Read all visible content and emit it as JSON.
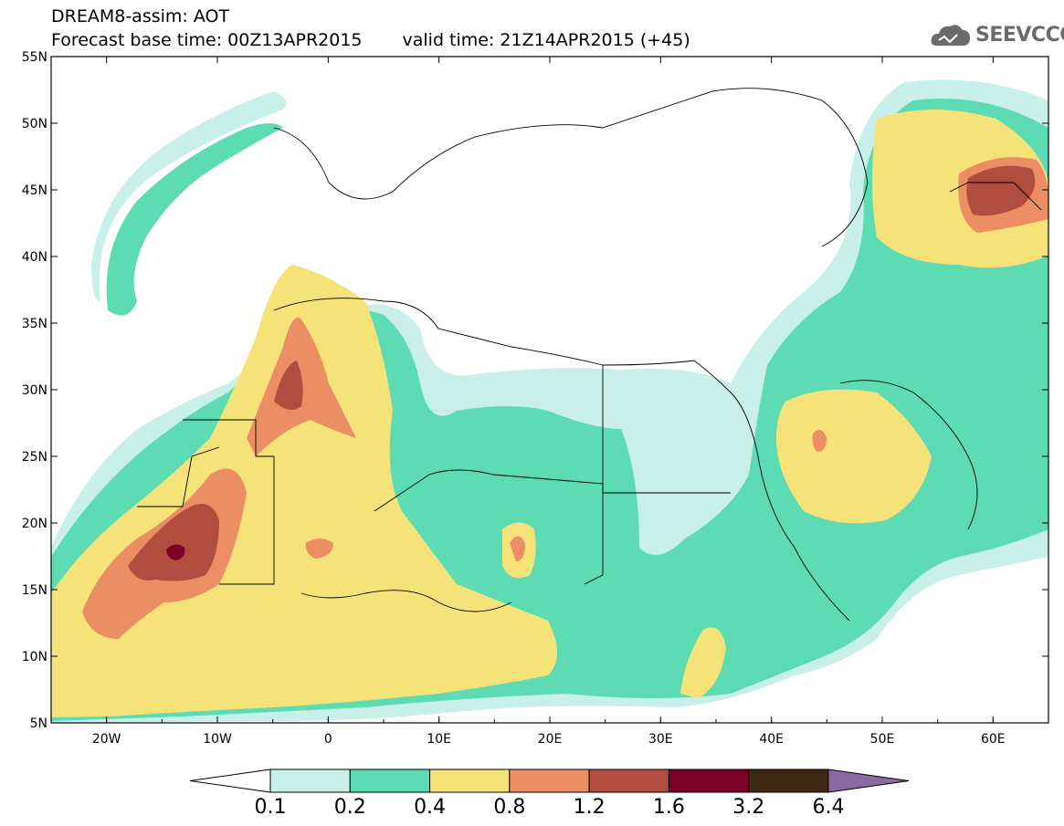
{
  "header": {
    "line1": "DREAM8-assim: AOT",
    "base_time": "Forecast base time: 00Z13APR2015",
    "valid_time": "valid time: 21Z14APR2015 (+45)"
  },
  "logo": {
    "text": "SEEVCCC",
    "icon": "cloud-icon"
  },
  "map": {
    "lat_labels": [
      "55N",
      "50N",
      "45N",
      "40N",
      "35N",
      "30N",
      "25N",
      "20N",
      "15N",
      "10N",
      "5N"
    ],
    "lon_labels": [
      "20W",
      "10W",
      "0",
      "10E",
      "20E",
      "30E",
      "40E",
      "50E",
      "60E"
    ],
    "lon_range": [
      -25,
      65
    ],
    "lat_range": [
      5,
      55
    ]
  },
  "colorbar": {
    "levels": [
      "0.1",
      "0.2",
      "0.4",
      "0.8",
      "1.2",
      "1.6",
      "3.2",
      "6.4"
    ],
    "colors": [
      "#ffffff",
      "#c8f0e8",
      "#5ddcb4",
      "#f5e37a",
      "#eb8e64",
      "#b04c40",
      "#7a0026",
      "#3c2814",
      "#8a6aa0"
    ]
  }
}
